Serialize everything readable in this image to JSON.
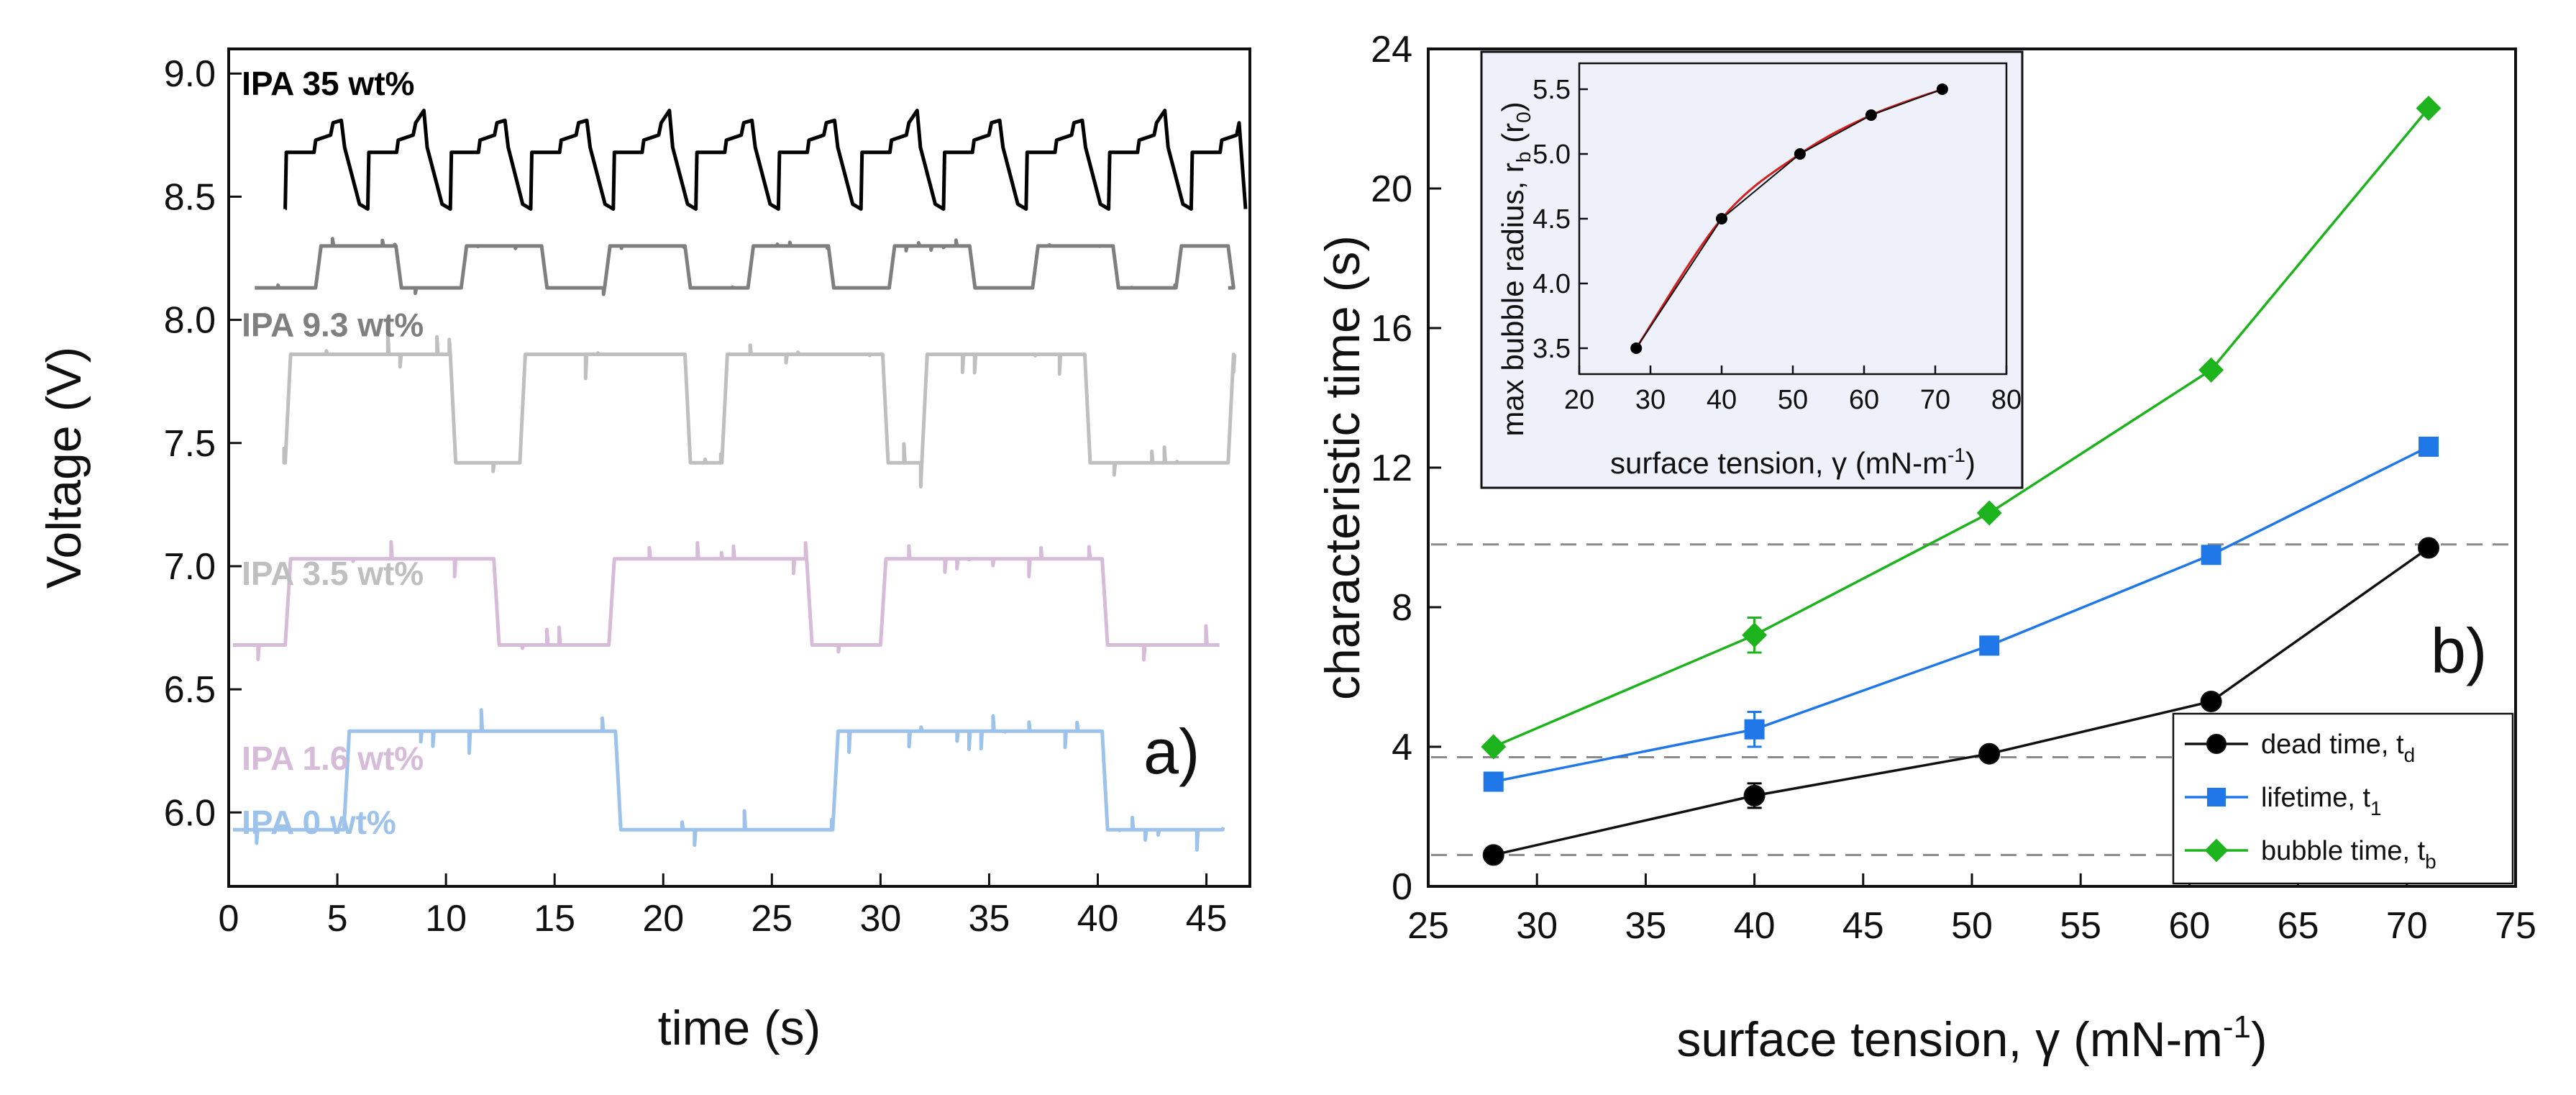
{
  "chart_data": [
    {
      "type": "line",
      "panel_label": "a)",
      "xlabel": "time (s)",
      "ylabel": "Voltage (V)",
      "xlim": [
        0,
        47
      ],
      "ylim": [
        5.7,
        9.1
      ],
      "xticks": [
        0,
        5,
        10,
        15,
        20,
        25,
        30,
        35,
        40,
        45
      ],
      "yticks": [
        6.0,
        6.5,
        7.0,
        7.5,
        8.0,
        8.5,
        9.0
      ],
      "ytick_labels": [
        "6.0",
        "6.5",
        "7.0",
        "7.5",
        "8.0",
        "8.5",
        "9.0"
      ],
      "series": [
        {
          "name": "IPA 35 wt%",
          "color": "#000000",
          "x_start": 2.6,
          "x_end": 46.8,
          "low": 8.45,
          "high": 8.85,
          "shape": "sawtooth",
          "rise_times": [
            2.6,
            6.4,
            10.2,
            13.9,
            17.7,
            21.5,
            25.3,
            29.1,
            32.9,
            36.7,
            40.5,
            44.3
          ]
        },
        {
          "name": "IPA 9.3 wt%",
          "color": "#7f7f7f",
          "x_start": 1.2,
          "x_end": 46.0,
          "low": 8.13,
          "high": 8.3,
          "shape": "square",
          "rise_times": [
            4.0,
            10.7,
            17.3,
            23.9,
            30.4,
            37.0,
            43.6
          ],
          "fall_times": [
            7.7,
            14.4,
            21.0,
            27.6,
            34.1,
            40.7,
            46.0
          ]
        },
        {
          "name": "IPA 3.5 wt%",
          "color": "#bfbfbf",
          "x_start": 2.6,
          "x_end": 46.3,
          "low": 7.42,
          "high": 7.86,
          "shape": "square",
          "rise_times": [
            2.6,
            13.4,
            22.7,
            31.9,
            46.0
          ],
          "fall_times": [
            10.2,
            21.0,
            30.1,
            39.4
          ]
        },
        {
          "name": "IPA 1.6 wt%",
          "color": "#d6bcd9",
          "x_start": 0.2,
          "x_end": 45.6,
          "low": 6.68,
          "high": 7.03,
          "shape": "square",
          "rise_times": [
            2.6,
            17.5,
            30.0
          ],
          "fall_times": [
            12.2,
            26.6,
            40.2
          ]
        },
        {
          "name": "IPA 0 wt%",
          "color": "#9dc3ea",
          "x_start": 0.2,
          "x_end": 45.8,
          "low": 5.93,
          "high": 6.33,
          "shape": "square",
          "rise_times": [
            5.3,
            27.8
          ],
          "fall_times": [
            17.8,
            40.2
          ]
        }
      ]
    },
    {
      "type": "line",
      "panel_label": "b)",
      "xlabel": "surface tension, γ (mN-m",
      "xlabel_sup": "-1",
      "xlabel_end": ")",
      "ylabel": "characteristic time (s)",
      "xlim": [
        25,
        75
      ],
      "ylim": [
        0,
        24
      ],
      "xticks": [
        25,
        30,
        35,
        40,
        45,
        50,
        55,
        60,
        65,
        70,
        75
      ],
      "yticks": [
        0,
        4,
        8,
        12,
        16,
        20,
        24
      ],
      "reference_lines_y": [
        0.9,
        3.7,
        9.8
      ],
      "series": [
        {
          "name": "dead time, t",
          "subscript": "d",
          "color": "#000000",
          "marker": "circle",
          "x": [
            28,
            40,
            50.8,
            61,
            71
          ],
          "y": [
            0.9,
            2.6,
            3.8,
            5.3,
            9.7
          ],
          "yerr": [
            0.1,
            0.35,
            0.1,
            0.1,
            0.1
          ]
        },
        {
          "name": "lifetime, t",
          "subscript": "1",
          "color": "#1f77e8",
          "marker": "square",
          "x": [
            28,
            40,
            50.8,
            61,
            71
          ],
          "y": [
            3.0,
            4.5,
            6.9,
            9.5,
            12.6
          ],
          "yerr": [
            0.1,
            0.5,
            0.1,
            0.1,
            0.1
          ]
        },
        {
          "name": "bubble time, t",
          "subscript": "b",
          "color": "#1db31d",
          "marker": "diamond",
          "x": [
            28,
            40,
            50.8,
            61,
            71
          ],
          "y": [
            4.0,
            7.2,
            10.7,
            14.8,
            22.3
          ],
          "yerr": [
            0.1,
            0.5,
            0.1,
            0.1,
            0.1
          ]
        }
      ],
      "inset": {
        "type": "scatter",
        "xlabel": "surface tension, γ (mN-m",
        "xlabel_sup": "-1",
        "xlabel_end": ")",
        "ylabel": "max bubble radius, r",
        "ylabel_sub": "b",
        "ylabel_mid": " (r",
        "ylabel_sub2": "0",
        "ylabel_end": ")",
        "xlim": [
          20,
          80
        ],
        "ylim": [
          3.3,
          5.7
        ],
        "xticks": [
          20,
          30,
          40,
          50,
          60,
          70,
          80
        ],
        "yticks": [
          3.5,
          4.0,
          4.5,
          5.0,
          5.5
        ],
        "ytick_labels": [
          "3.5",
          "4.0",
          "4.5",
          "5.0",
          "5.5"
        ],
        "x": [
          28,
          40,
          51,
          61,
          71
        ],
        "y": [
          3.5,
          4.5,
          5.0,
          5.3,
          5.5
        ],
        "point_color": "#000000",
        "fit_color": "#d62020"
      }
    }
  ]
}
